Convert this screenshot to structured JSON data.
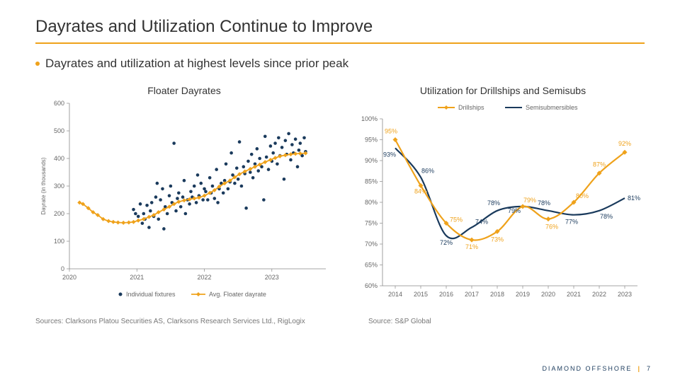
{
  "title": "Dayrates and Utilization Continue to Improve",
  "bullet": "Dayrates and utilization at highest levels since prior peak",
  "colors": {
    "accent": "#efa21b",
    "scatter": "#1a3a5c",
    "semisub": "#1a3a5c",
    "drillship": "#efa21b",
    "axis": "#888",
    "text": "#333",
    "tick": "#666",
    "source": "#777"
  },
  "left_chart": {
    "type": "scatter+line",
    "title": "Floater Dayrates",
    "ylabel": "Dayrate (in thousands)",
    "xlim": [
      2020,
      2023.8
    ],
    "ylim": [
      0,
      600
    ],
    "ytick_step": 100,
    "xticks": [
      2020,
      2021,
      2022,
      2023
    ],
    "legend": {
      "scatter": "Individual fixtures",
      "line": "Avg. Floater dayrate"
    },
    "scatter": [
      [
        2020.95,
        215
      ],
      [
        2020.98,
        200
      ],
      [
        2021.02,
        190
      ],
      [
        2021.05,
        235
      ],
      [
        2021.08,
        165
      ],
      [
        2021.1,
        200
      ],
      [
        2021.12,
        180
      ],
      [
        2021.15,
        230
      ],
      [
        2021.18,
        150
      ],
      [
        2021.2,
        210
      ],
      [
        2021.22,
        240
      ],
      [
        2021.25,
        190
      ],
      [
        2021.28,
        260
      ],
      [
        2021.3,
        310
      ],
      [
        2021.32,
        180
      ],
      [
        2021.35,
        250
      ],
      [
        2021.38,
        290
      ],
      [
        2021.4,
        145
      ],
      [
        2021.42,
        225
      ],
      [
        2021.45,
        200
      ],
      [
        2021.48,
        265
      ],
      [
        2021.5,
        300
      ],
      [
        2021.52,
        240
      ],
      [
        2021.55,
        455
      ],
      [
        2021.58,
        210
      ],
      [
        2021.6,
        255
      ],
      [
        2021.62,
        275
      ],
      [
        2021.65,
        225
      ],
      [
        2021.68,
        260
      ],
      [
        2021.7,
        320
      ],
      [
        2021.72,
        200
      ],
      [
        2021.75,
        250
      ],
      [
        2021.78,
        235
      ],
      [
        2021.8,
        280
      ],
      [
        2021.82,
        260
      ],
      [
        2021.85,
        300
      ],
      [
        2021.88,
        240
      ],
      [
        2021.9,
        340
      ],
      [
        2021.92,
        265
      ],
      [
        2021.95,
        310
      ],
      [
        2021.98,
        250
      ],
      [
        2022.0,
        290
      ],
      [
        2022.02,
        280
      ],
      [
        2022.05,
        250
      ],
      [
        2022.08,
        330
      ],
      [
        2022.1,
        275
      ],
      [
        2022.12,
        300
      ],
      [
        2022.15,
        255
      ],
      [
        2022.18,
        360
      ],
      [
        2022.2,
        240
      ],
      [
        2022.22,
        290
      ],
      [
        2022.25,
        310
      ],
      [
        2022.28,
        275
      ],
      [
        2022.3,
        320
      ],
      [
        2022.32,
        380
      ],
      [
        2022.35,
        290
      ],
      [
        2022.38,
        315
      ],
      [
        2022.4,
        420
      ],
      [
        2022.42,
        340
      ],
      [
        2022.45,
        310
      ],
      [
        2022.48,
        365
      ],
      [
        2022.5,
        325
      ],
      [
        2022.52,
        460
      ],
      [
        2022.55,
        300
      ],
      [
        2022.58,
        370
      ],
      [
        2022.6,
        345
      ],
      [
        2022.62,
        220
      ],
      [
        2022.65,
        390
      ],
      [
        2022.68,
        350
      ],
      [
        2022.7,
        415
      ],
      [
        2022.72,
        330
      ],
      [
        2022.75,
        380
      ],
      [
        2022.78,
        435
      ],
      [
        2022.8,
        355
      ],
      [
        2022.82,
        400
      ],
      [
        2022.85,
        370
      ],
      [
        2022.88,
        250
      ],
      [
        2022.9,
        480
      ],
      [
        2022.92,
        405
      ],
      [
        2022.95,
        360
      ],
      [
        2022.98,
        445
      ],
      [
        2023.0,
        390
      ],
      [
        2023.02,
        420
      ],
      [
        2023.05,
        455
      ],
      [
        2023.08,
        380
      ],
      [
        2023.1,
        475
      ],
      [
        2023.12,
        410
      ],
      [
        2023.15,
        440
      ],
      [
        2023.18,
        325
      ],
      [
        2023.2,
        465
      ],
      [
        2023.22,
        415
      ],
      [
        2023.25,
        490
      ],
      [
        2023.28,
        395
      ],
      [
        2023.3,
        450
      ],
      [
        2023.32,
        420
      ],
      [
        2023.35,
        470
      ],
      [
        2023.38,
        370
      ],
      [
        2023.4,
        430
      ],
      [
        2023.42,
        455
      ],
      [
        2023.45,
        410
      ],
      [
        2023.48,
        475
      ],
      [
        2023.5,
        425
      ]
    ],
    "line": [
      [
        2020.15,
        240
      ],
      [
        2020.2,
        235
      ],
      [
        2020.28,
        220
      ],
      [
        2020.35,
        205
      ],
      [
        2020.42,
        195
      ],
      [
        2020.5,
        180
      ],
      [
        2020.58,
        173
      ],
      [
        2020.65,
        170
      ],
      [
        2020.72,
        168
      ],
      [
        2020.8,
        167
      ],
      [
        2020.88,
        168
      ],
      [
        2020.95,
        170
      ],
      [
        2021.02,
        175
      ],
      [
        2021.1,
        180
      ],
      [
        2021.18,
        188
      ],
      [
        2021.25,
        195
      ],
      [
        2021.32,
        205
      ],
      [
        2021.4,
        215
      ],
      [
        2021.48,
        225
      ],
      [
        2021.55,
        235
      ],
      [
        2021.62,
        243
      ],
      [
        2021.7,
        248
      ],
      [
        2021.78,
        252
      ],
      [
        2021.85,
        255
      ],
      [
        2021.92,
        258
      ],
      [
        2022.0,
        265
      ],
      [
        2022.08,
        275
      ],
      [
        2022.15,
        285
      ],
      [
        2022.22,
        298
      ],
      [
        2022.3,
        310
      ],
      [
        2022.38,
        320
      ],
      [
        2022.45,
        332
      ],
      [
        2022.52,
        343
      ],
      [
        2022.6,
        353
      ],
      [
        2022.68,
        362
      ],
      [
        2022.75,
        370
      ],
      [
        2022.82,
        378
      ],
      [
        2022.9,
        387
      ],
      [
        2022.98,
        395
      ],
      [
        2023.05,
        402
      ],
      [
        2023.12,
        408
      ],
      [
        2023.2,
        412
      ],
      [
        2023.28,
        415
      ],
      [
        2023.35,
        417
      ],
      [
        2023.42,
        418
      ],
      [
        2023.5,
        419
      ]
    ]
  },
  "right_chart": {
    "type": "line",
    "title": "Utilization for Drillships and Semisubs",
    "ylim": [
      60,
      100
    ],
    "ytick_step": 5,
    "xticks": [
      2014,
      2015,
      2016,
      2017,
      2018,
      2019,
      2020,
      2021,
      2022,
      2023
    ],
    "legend": {
      "drillships": "Drillships",
      "semisubs": "Semisubmersibles"
    },
    "drillships": {
      "values": [
        95,
        84,
        75,
        71,
        73,
        79,
        76,
        80,
        87,
        92
      ],
      "label_color": "#efa21b"
    },
    "semisubs": {
      "values": [
        93,
        86,
        72,
        74,
        78,
        79,
        78,
        77,
        78,
        81
      ],
      "label_color": "#1a3a5c"
    }
  },
  "sources": {
    "left": "Sources:  Clarksons Platou Securities AS, Clarksons Research Services Ltd., RigLogix",
    "right": "Source: S&P Global"
  },
  "footer": {
    "company": "DIAMOND OFFSHORE",
    "page": "7"
  }
}
